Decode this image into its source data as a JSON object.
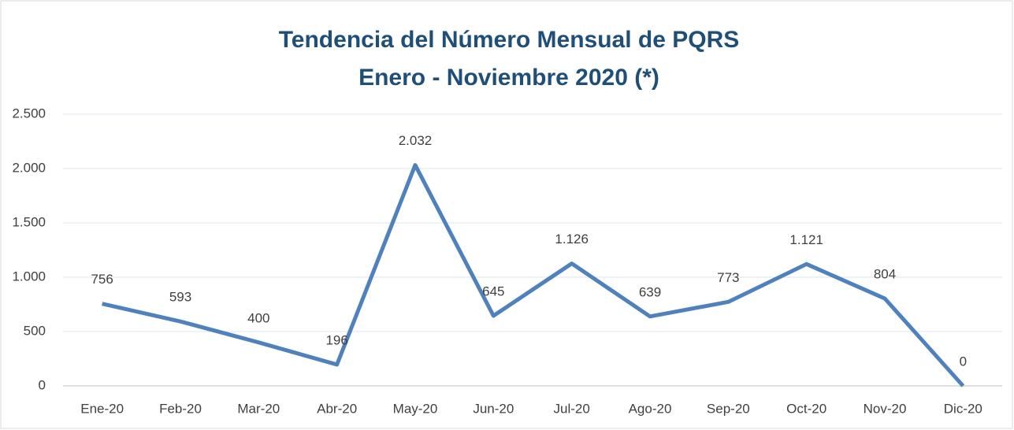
{
  "chart_data": {
    "type": "line",
    "title": "Tendencia del Número Mensual de PQRS",
    "subtitle": "Enero - Noviembre 2020 (*)",
    "categories": [
      "Ene-20",
      "Feb-20",
      "Mar-20",
      "Abr-20",
      "May-20",
      "Jun-20",
      "Jul-20",
      "Ago-20",
      "Sep-20",
      "Oct-20",
      "Nov-20",
      "Dic-20"
    ],
    "values": [
      756,
      593,
      400,
      196,
      2032,
      645,
      1126,
      639,
      773,
      1121,
      804,
      0
    ],
    "value_labels": [
      "756",
      "593",
      "400",
      "196",
      "2.032",
      "645",
      "1.126",
      "639",
      "773",
      "1.121",
      "804",
      "0"
    ],
    "color": "#4f81bd",
    "ylim": [
      0,
      2500
    ],
    "yticks": [
      0,
      500,
      {
        "value": 1000,
        "label": "1.000"
      },
      {
        "value": 1500,
        "label": "1.500"
      },
      {
        "value": 2000,
        "label": "2.000"
      },
      {
        "value": 2500,
        "label": "2.500"
      }
    ],
    "grid": true
  }
}
